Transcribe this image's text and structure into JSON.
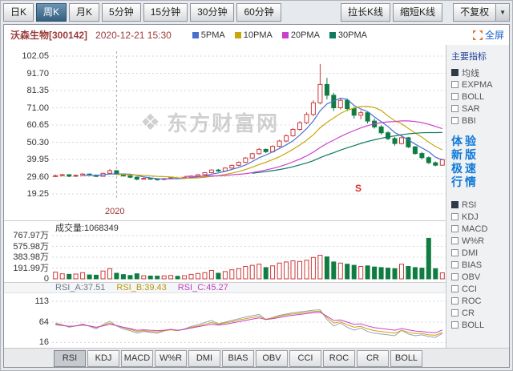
{
  "toolbar": {
    "period_tabs": [
      {
        "label": "日K",
        "active": false
      },
      {
        "label": "周K",
        "active": true
      },
      {
        "label": "月K",
        "active": false
      },
      {
        "label": "5分钟",
        "active": false
      },
      {
        "label": "15分钟",
        "active": false
      },
      {
        "label": "30分钟",
        "active": false
      },
      {
        "label": "60分钟",
        "active": false
      }
    ],
    "stretch_label": "拉长K线",
    "shrink_label": "缩短K线",
    "adjust_label": "不复权"
  },
  "header": {
    "stock_name": "沃森生物[300142]",
    "datetime": "2020-12-21 15:30",
    "legend": [
      {
        "label": "5PMA",
        "color": "#4a6fd0"
      },
      {
        "label": "10PMA",
        "color": "#c9a60a"
      },
      {
        "label": "20PMA",
        "color": "#cc3fcc"
      },
      {
        "label": "30PMA",
        "color": "#0e7a63"
      }
    ],
    "fullscreen_label": "全屏"
  },
  "sidebar": {
    "title": "主要指标",
    "main_indicators": [
      {
        "label": "均线",
        "checked": true
      },
      {
        "label": "EXPMA",
        "checked": false
      },
      {
        "label": "BOLL",
        "checked": false
      },
      {
        "label": "SAR",
        "checked": false
      },
      {
        "label": "BBI",
        "checked": false
      }
    ],
    "promo_lines": [
      "体验",
      "新版",
      "极速",
      "行情"
    ],
    "sub_indicators": [
      {
        "label": "RSI",
        "checked": true
      },
      {
        "label": "KDJ",
        "checked": false
      },
      {
        "label": "MACD",
        "checked": false
      },
      {
        "label": "W%R",
        "checked": false
      },
      {
        "label": "DMI",
        "checked": false
      },
      {
        "label": "BIAS",
        "checked": false
      },
      {
        "label": "OBV",
        "checked": false
      },
      {
        "label": "CCI",
        "checked": false
      },
      {
        "label": "ROC",
        "checked": false
      },
      {
        "label": "CR",
        "checked": false
      },
      {
        "label": "BOLL",
        "checked": false
      }
    ]
  },
  "price_chart": {
    "y_labels": [
      "102.05",
      "91.70",
      "81.35",
      "71.00",
      "60.65",
      "50.30",
      "39.95",
      "29.60",
      "19.25"
    ],
    "x_label": "2020",
    "watermark": "东方财富网",
    "marker": "S"
  },
  "volume_panel": {
    "title": "成交量:1068349",
    "y_labels": [
      "767.97万",
      "575.98万",
      "383.98万",
      "191.99万",
      "0"
    ]
  },
  "rsi_panel": {
    "labels": [
      {
        "text": "RSI_A:37.51",
        "color": "#6e7a8a"
      },
      {
        "text": "RSI_B:39.43",
        "color": "#b8960a"
      },
      {
        "text": "RSI_C:45.27",
        "color": "#c03fc0"
      }
    ],
    "y_labels": [
      "113",
      "64",
      "16"
    ]
  },
  "bottom_tabs": [
    {
      "label": "RSI",
      "active": true
    },
    {
      "label": "KDJ",
      "active": false
    },
    {
      "label": "MACD",
      "active": false
    },
    {
      "label": "W%R",
      "active": false
    },
    {
      "label": "DMI",
      "active": false
    },
    {
      "label": "BIAS",
      "active": false
    },
    {
      "label": "OBV",
      "active": false
    },
    {
      "label": "CCI",
      "active": false
    },
    {
      "label": "ROC",
      "active": false
    },
    {
      "label": "CR",
      "active": false
    },
    {
      "label": "BOLL",
      "active": false
    }
  ],
  "chart_data": {
    "type": "candlestick",
    "title": "沃森生物[300142] 周K 2020-12-21 15:30",
    "price_axis": [
      102.05,
      91.7,
      81.35,
      71.0,
      60.65,
      50.3,
      39.95,
      29.6,
      19.25
    ],
    "volume_axis_wan": [
      767.97,
      575.98,
      383.98,
      191.99,
      0
    ],
    "rsi_axis": [
      113,
      64,
      16
    ],
    "year_divider_index": 9,
    "up_color": "#cc3a3a",
    "down_color": "#0f7c41",
    "candles_ohlc": [
      [
        30.0,
        30.9,
        29.4,
        30.2
      ],
      [
        30.2,
        31.4,
        29.8,
        30.8
      ],
      [
        30.8,
        31.0,
        29.3,
        29.9
      ],
      [
        29.9,
        30.9,
        29.4,
        30.4
      ],
      [
        30.4,
        31.8,
        30.0,
        31.2
      ],
      [
        31.2,
        31.5,
        30.0,
        30.5
      ],
      [
        30.5,
        30.9,
        29.3,
        29.8
      ],
      [
        29.8,
        32.0,
        29.5,
        31.6
      ],
      [
        31.6,
        34.2,
        31.2,
        33.2
      ],
      [
        33.2,
        33.5,
        30.6,
        31.2
      ],
      [
        31.2,
        31.5,
        29.6,
        30.1
      ],
      [
        30.1,
        30.4,
        28.8,
        29.3
      ],
      [
        29.3,
        29.5,
        27.4,
        28.1
      ],
      [
        28.1,
        29.1,
        27.8,
        28.6
      ],
      [
        28.6,
        28.9,
        27.7,
        28.2
      ],
      [
        28.2,
        28.5,
        27.3,
        27.9
      ],
      [
        27.9,
        28.8,
        27.5,
        28.4
      ],
      [
        28.4,
        29.3,
        28.0,
        28.9
      ],
      [
        28.9,
        29.1,
        28.1,
        28.6
      ],
      [
        28.6,
        29.6,
        28.2,
        29.2
      ],
      [
        29.2,
        30.4,
        28.9,
        30.0
      ],
      [
        30.0,
        31.2,
        29.6,
        30.8
      ],
      [
        30.8,
        32.4,
        30.4,
        32.0
      ],
      [
        32.0,
        34.0,
        31.6,
        33.6
      ],
      [
        33.6,
        34.2,
        32.4,
        33.0
      ],
      [
        33.0,
        35.3,
        32.6,
        34.8
      ],
      [
        34.8,
        36.9,
        34.3,
        36.4
      ],
      [
        36.4,
        38.8,
        35.9,
        38.2
      ],
      [
        38.2,
        41.4,
        37.8,
        40.8
      ],
      [
        40.8,
        44.0,
        40.2,
        43.4
      ],
      [
        43.4,
        46.8,
        42.8,
        46.0
      ],
      [
        46.0,
        46.5,
        43.8,
        44.6
      ],
      [
        44.6,
        48.4,
        44.0,
        47.8
      ],
      [
        47.8,
        51.8,
        47.2,
        51.0
      ],
      [
        51.0,
        55.0,
        50.4,
        54.2
      ],
      [
        54.2,
        58.9,
        53.6,
        58.0
      ],
      [
        58.0,
        63.0,
        57.2,
        62.0
      ],
      [
        62.0,
        68.2,
        61.2,
        67.0
      ],
      [
        67.0,
        75.5,
        66.0,
        74.0
      ],
      [
        74.0,
        97.3,
        73.0,
        85.0
      ],
      [
        85.0,
        89.0,
        76.0,
        78.5
      ],
      [
        78.5,
        80.0,
        69.0,
        71.0
      ],
      [
        71.0,
        77.0,
        70.0,
        75.5
      ],
      [
        75.5,
        76.5,
        69.0,
        70.5
      ],
      [
        70.5,
        71.5,
        64.5,
        66.5
      ],
      [
        66.5,
        69.5,
        64.0,
        68.0
      ],
      [
        68.0,
        68.5,
        61.5,
        63.0
      ],
      [
        63.0,
        64.5,
        58.5,
        59.5
      ],
      [
        59.5,
        60.5,
        54.8,
        56.0
      ],
      [
        56.0,
        57.0,
        51.5,
        52.5
      ],
      [
        52.5,
        53.5,
        48.2,
        49.5
      ],
      [
        49.5,
        54.0,
        49.0,
        53.0
      ],
      [
        53.0,
        53.5,
        46.8,
        47.5
      ],
      [
        47.5,
        48.0,
        42.8,
        43.5
      ],
      [
        43.5,
        44.5,
        40.2,
        41.0
      ],
      [
        41.0,
        41.8,
        37.2,
        38.0
      ],
      [
        38.0,
        38.8,
        35.8,
        36.5
      ],
      [
        36.5,
        40.5,
        36.2,
        39.8
      ]
    ],
    "volumes_wan": [
      120,
      90,
      80,
      85,
      110,
      70,
      65,
      140,
      180,
      100,
      75,
      60,
      90,
      55,
      50,
      48,
      52,
      60,
      45,
      55,
      80,
      95,
      110,
      150,
      100,
      130,
      160,
      180,
      220,
      240,
      260,
      200,
      230,
      280,
      300,
      320,
      310,
      330,
      380,
      420,
      390,
      300,
      280,
      260,
      240,
      220,
      230,
      210,
      200,
      190,
      180,
      260,
      220,
      200,
      190,
      720,
      180,
      107
    ],
    "ma_list": [
      {
        "period": 5,
        "color": "#4a6fd0"
      },
      {
        "period": 10,
        "color": "#c9a60a"
      },
      {
        "period": 20,
        "color": "#cc3fcc"
      },
      {
        "period": 30,
        "color": "#0e7a63"
      }
    ],
    "rsi_series": [
      {
        "name": "RSI_A",
        "color": "#98a2b0",
        "values": [
          62,
          58,
          52,
          55,
          60,
          54,
          48,
          58,
          66,
          55,
          48,
          44,
          38,
          42,
          40,
          38,
          43,
          47,
          44,
          48,
          54,
          58,
          63,
          68,
          60,
          64,
          68,
          72,
          76,
          79,
          82,
          70,
          75,
          80,
          83,
          86,
          88,
          90,
          92,
          93,
          70,
          55,
          62,
          52,
          45,
          50,
          42,
          38,
          36,
          34,
          32,
          45,
          36,
          32,
          34,
          30,
          28,
          37.51
        ]
      },
      {
        "name": "RSI_B",
        "color": "#c9a60a",
        "values": [
          60,
          57,
          54,
          55,
          58,
          55,
          51,
          56,
          62,
          56,
          51,
          47,
          42,
          44,
          42,
          41,
          44,
          46,
          44,
          47,
          52,
          55,
          59,
          63,
          59,
          62,
          65,
          69,
          72,
          75,
          78,
          71,
          74,
          78,
          81,
          83,
          85,
          87,
          89,
          90,
          75,
          62,
          65,
          58,
          52,
          54,
          48,
          44,
          42,
          40,
          38,
          45,
          40,
          37,
          37,
          34,
          33,
          39.43
        ]
      },
      {
        "name": "RSI_C",
        "color": "#cc3fcc",
        "values": [
          58,
          56,
          54,
          55,
          57,
          55,
          52,
          55,
          59,
          56,
          52,
          49,
          45,
          46,
          45,
          44,
          45,
          47,
          45,
          47,
          50,
          53,
          56,
          59,
          57,
          59,
          62,
          65,
          68,
          71,
          74,
          70,
          72,
          75,
          78,
          80,
          82,
          84,
          86,
          87,
          78,
          68,
          69,
          64,
          59,
          60,
          55,
          51,
          49,
          47,
          45,
          49,
          46,
          43,
          42,
          40,
          39,
          45.27
        ]
      }
    ],
    "latest_values": {
      "rsi_a": 37.51,
      "rsi_b": 39.43,
      "rsi_c": 45.27,
      "volume_hands": "1068349"
    }
  }
}
